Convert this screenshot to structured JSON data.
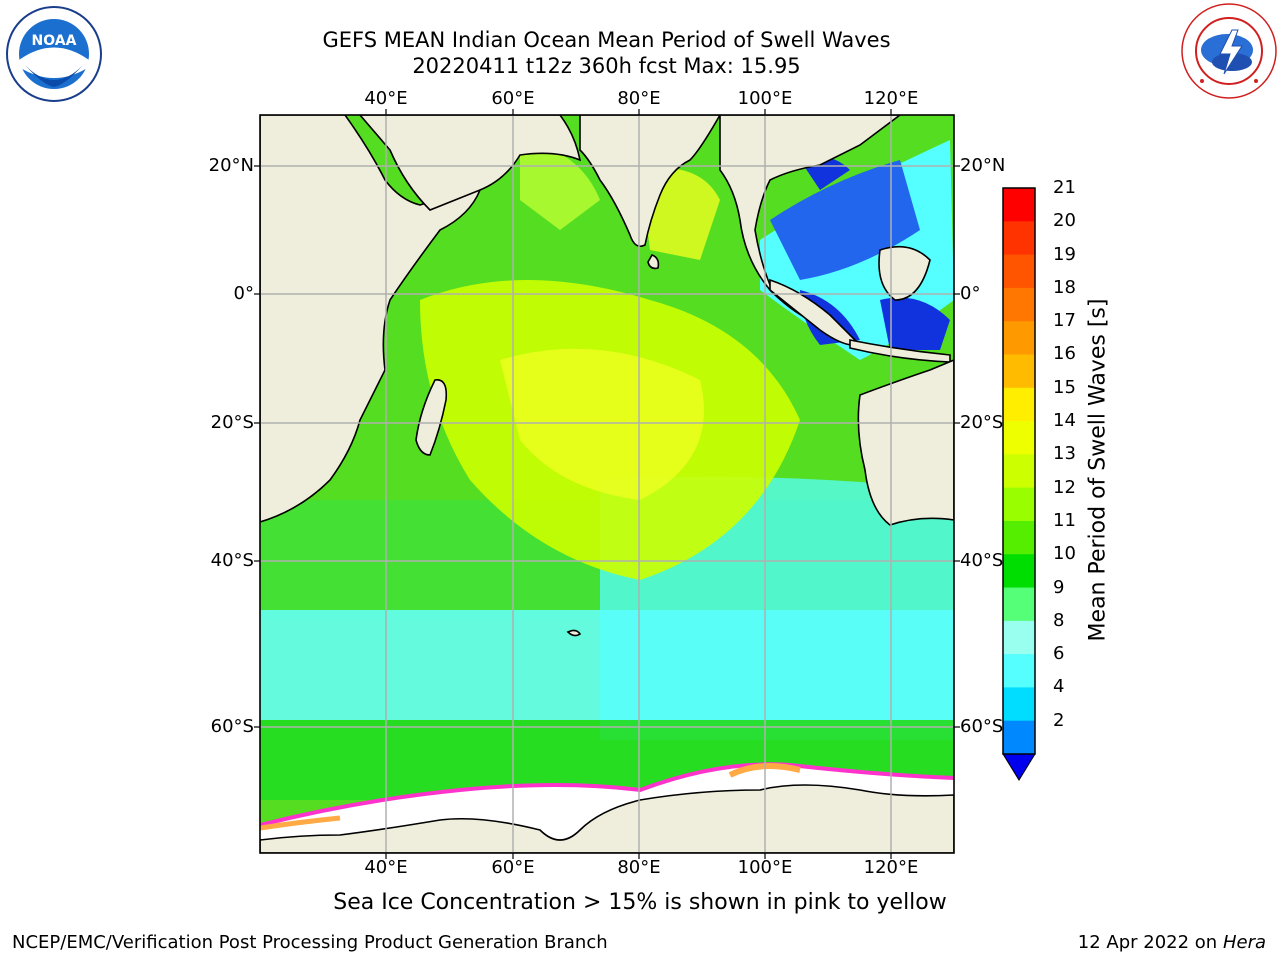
{
  "title": {
    "line1": "GEFS MEAN Indian Ocean Mean Period of Swell Waves",
    "line2": "20220411 t12z 360h fcst   Max: 15.95"
  },
  "logos": {
    "left": {
      "name": "noaa-logo",
      "text": "NOAA"
    },
    "right": {
      "name": "nws-logo",
      "text": "NATIONAL WEATHER SERVICE"
    }
  },
  "map": {
    "lon_labels": [
      "40°E",
      "60°E",
      "80°E",
      "100°E",
      "120°E"
    ],
    "lat_labels_left": [
      "20°N",
      "0°",
      "20°S",
      "40°S",
      "60°S"
    ],
    "lat_labels_right": [
      "20°N",
      "0°",
      "20°S",
      "40°S",
      "60°S"
    ]
  },
  "colorbar": {
    "title": "Mean Period of Swell Waves [s]",
    "ticks": [
      "21",
      "20",
      "19",
      "18",
      "17",
      "16",
      "15",
      "14",
      "13",
      "12",
      "11",
      "10",
      "9",
      "8",
      "6",
      "4",
      "2"
    ],
    "colors": [
      "#ff0000",
      "#ff3300",
      "#ff5500",
      "#ff7700",
      "#ff9900",
      "#ffbb00",
      "#ffee00",
      "#eeff00",
      "#ccff00",
      "#99ff00",
      "#55ee00",
      "#00dd00",
      "#55ff77",
      "#99ffee",
      "#55ffff",
      "#00ddff",
      "#0088ff",
      "#0000ee"
    ]
  },
  "note": "Sea Ice Concentration > 15% is shown in pink to yellow",
  "footer": {
    "left": "NCEP/EMC/Verification Post Processing Product Generation Branch",
    "right_prefix": "12 Apr 2022 on ",
    "right_host": "Hera"
  }
}
